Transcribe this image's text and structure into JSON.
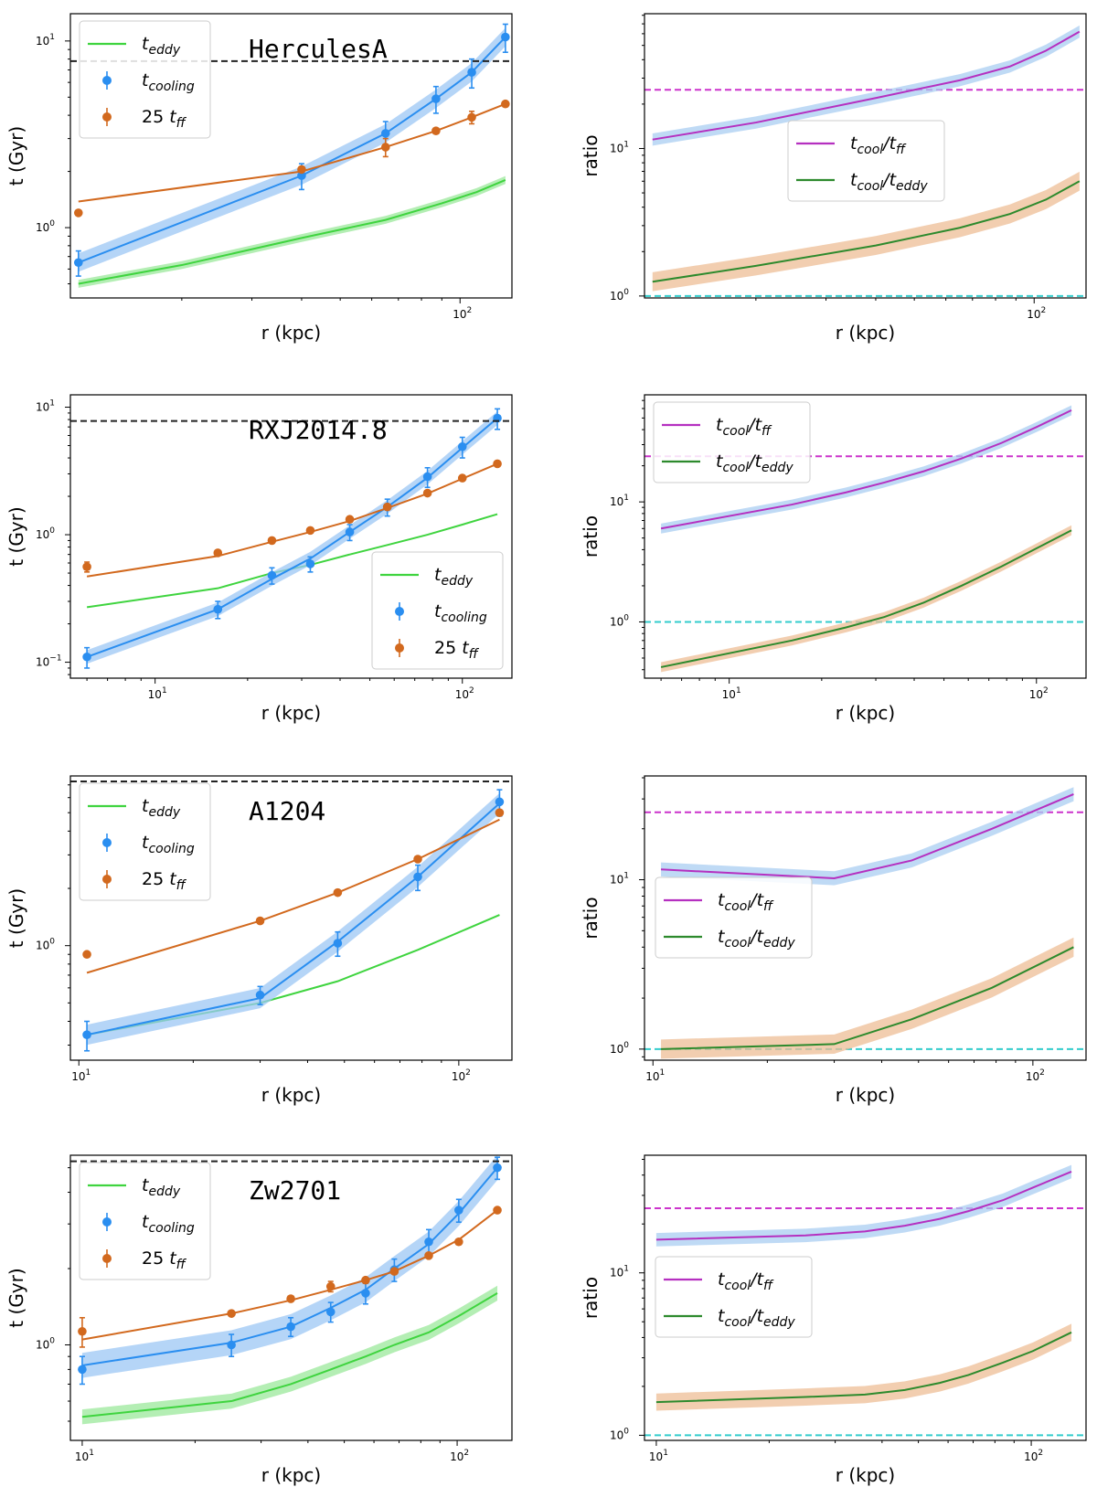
{
  "chart_data": [
    {
      "type": "line",
      "panel": "time",
      "title": "HerculesA",
      "xlabel": "r (kpc)",
      "ylabel": "t (Gyr)",
      "xlim": [
        10.5,
        135
      ],
      "ylim": [
        0.42,
        14
      ],
      "yticks": [
        {
          "v": 1,
          "exp": "0"
        },
        {
          "v": 10,
          "exp": "1"
        }
      ],
      "xticks": [
        {
          "v": 100,
          "exp": "2"
        }
      ],
      "ref_line": 7.8,
      "legend": [
        "t_eddy",
        "t_cooling",
        "25 t_ff"
      ],
      "legend_position": "upper-left",
      "series": [
        {
          "name": "t_eddy",
          "band": 0.05,
          "x": [
            11,
            20,
            40,
            65,
            90,
            110,
            130
          ],
          "y": [
            0.5,
            0.63,
            0.88,
            1.1,
            1.35,
            1.55,
            1.8
          ]
        },
        {
          "name": "t_cooling",
          "band": 0.12,
          "x": [
            11,
            40,
            65,
            87,
            107,
            130
          ],
          "y": [
            0.65,
            1.9,
            3.2,
            4.9,
            6.8,
            10.5
          ],
          "points": {
            "x": [
              11,
              40,
              65,
              87,
              107,
              130
            ],
            "y": [
              0.65,
              1.9,
              3.2,
              4.9,
              6.8,
              10.5
            ],
            "err": [
              0.1,
              0.3,
              0.5,
              0.8,
              1.2,
              1.8
            ]
          }
        },
        {
          "name": "25 t_ff",
          "band": 0,
          "x": [
            11,
            40,
            65,
            87,
            107,
            130
          ],
          "y": [
            1.38,
            2.0,
            2.7,
            3.3,
            3.9,
            4.6
          ],
          "points": {
            "x": [
              11,
              40,
              65,
              87,
              107,
              130
            ],
            "y": [
              1.2,
              2.05,
              2.7,
              3.3,
              3.9,
              4.6
            ],
            "err": [
              0,
              0,
              0.3,
              0,
              0.3,
              0
            ]
          }
        }
      ]
    },
    {
      "type": "line",
      "panel": "ratio",
      "title": "",
      "xlabel": "r (kpc)",
      "ylabel": "ratio",
      "xlim": [
        10.5,
        135
      ],
      "ylim": [
        0.97,
        82
      ],
      "yticks": [
        {
          "v": 1,
          "exp": "0"
        },
        {
          "v": 10,
          "exp": "1"
        }
      ],
      "xticks": [
        {
          "v": 100,
          "exp": "2"
        }
      ],
      "hlines": [
        {
          "v": 25,
          "color": "#cc33cc"
        },
        {
          "v": 1,
          "color": "#33cccc"
        }
      ],
      "legend": [
        "t_cool/t_ff",
        "t_cool/t_eddy"
      ],
      "legend_position": "center",
      "series": [
        {
          "name": "t_cool/t_ff",
          "band": 0.1,
          "x": [
            11,
            20,
            40,
            65,
            87,
            107,
            130
          ],
          "y": [
            11.5,
            15,
            22,
            29,
            36,
            46,
            62
          ]
        },
        {
          "name": "t_cool/t_eddy",
          "band": 0.16,
          "x": [
            11,
            20,
            40,
            65,
            87,
            107,
            130
          ],
          "y": [
            1.25,
            1.6,
            2.2,
            2.9,
            3.6,
            4.5,
            6.0
          ]
        }
      ]
    },
    {
      "type": "line",
      "panel": "time",
      "title": "RXJ2014.8",
      "xlabel": "r (kpc)",
      "ylabel": "t (Gyr)",
      "xlim": [
        5.3,
        145
      ],
      "ylim": [
        0.075,
        12.5
      ],
      "yticks": [
        {
          "v": 0.1,
          "exp": "−1"
        },
        {
          "v": 1,
          "exp": "0"
        },
        {
          "v": 10,
          "exp": "1"
        }
      ],
      "xticks": [
        {
          "v": 10,
          "exp": "1"
        },
        {
          "v": 100,
          "exp": "2"
        }
      ],
      "ref_line": 7.8,
      "legend": [
        "t_eddy",
        "t_cooling",
        "25 t_ff"
      ],
      "legend_position": "lower-right",
      "series": [
        {
          "name": "t_eddy",
          "band": 0,
          "x": [
            6,
            16,
            24,
            32,
            43,
            57,
            77,
            100,
            130
          ],
          "y": [
            0.27,
            0.38,
            0.5,
            0.58,
            0.7,
            0.83,
            1.0,
            1.2,
            1.45
          ]
        },
        {
          "name": "t_cooling",
          "band": 0.13,
          "x": [
            6,
            16,
            24,
            32,
            43,
            57,
            77,
            100,
            130
          ],
          "y": [
            0.11,
            0.26,
            0.45,
            0.65,
            1.05,
            1.65,
            2.8,
            4.8,
            8.2
          ],
          "points": {
            "x": [
              6,
              16,
              24,
              32,
              43,
              57,
              77,
              100,
              130
            ],
            "y": [
              0.11,
              0.26,
              0.48,
              0.59,
              1.05,
              1.65,
              2.85,
              4.9,
              8.2
            ],
            "err": [
              0.02,
              0.04,
              0.07,
              0.08,
              0.15,
              0.25,
              0.5,
              0.9,
              1.5
            ]
          }
        },
        {
          "name": "25 t_ff",
          "band": 0,
          "x": [
            6,
            16,
            24,
            32,
            43,
            57,
            77,
            100,
            130
          ],
          "y": [
            0.47,
            0.68,
            0.88,
            1.05,
            1.28,
            1.62,
            2.1,
            2.75,
            3.6
          ],
          "points": {
            "x": [
              6,
              16,
              24,
              32,
              43,
              57,
              77,
              100,
              130
            ],
            "y": [
              0.56,
              0.72,
              0.9,
              1.08,
              1.32,
              1.65,
              2.12,
              2.78,
              3.6
            ],
            "err": [
              0.05,
              0,
              0,
              0,
              0,
              0,
              0,
              0,
              0
            ]
          }
        }
      ]
    },
    {
      "type": "line",
      "panel": "ratio",
      "title": "",
      "xlabel": "r (kpc)",
      "ylabel": "ratio",
      "xlim": [
        5.3,
        145
      ],
      "ylim": [
        0.34,
        78
      ],
      "yticks": [
        {
          "v": 1,
          "exp": "0"
        },
        {
          "v": 10,
          "exp": "1"
        }
      ],
      "xticks": [
        {
          "v": 10,
          "exp": "1"
        },
        {
          "v": 100,
          "exp": "2"
        }
      ],
      "hlines": [
        {
          "v": 24,
          "color": "#cc33cc"
        },
        {
          "v": 1,
          "color": "#33cccc"
        }
      ],
      "legend": [
        "t_cool/t_ff",
        "t_cool/t_eddy"
      ],
      "legend_position": "upper-left",
      "series": [
        {
          "name": "t_cool/t_ff",
          "band": 0.1,
          "x": [
            6,
            16,
            24,
            32,
            43,
            57,
            77,
            100,
            130
          ],
          "y": [
            6.0,
            9.5,
            12,
            14.5,
            18,
            23,
            31,
            42,
            58
          ]
        },
        {
          "name": "t_cool/t_eddy",
          "band": 0.1,
          "x": [
            6,
            16,
            24,
            32,
            43,
            57,
            77,
            100,
            130
          ],
          "y": [
            0.42,
            0.7,
            0.9,
            1.1,
            1.45,
            2.0,
            2.9,
            4.1,
            5.8
          ]
        }
      ]
    },
    {
      "type": "line",
      "panel": "time",
      "title": "A1204",
      "xlabel": "r (kpc)",
      "ylabel": "t (Gyr)",
      "xlim": [
        9.5,
        138
      ],
      "ylim": [
        0.25,
        7.8
      ],
      "yticks": [
        {
          "v": 1,
          "exp": "0"
        }
      ],
      "xticks": [
        {
          "v": 10,
          "exp": "1"
        },
        {
          "v": 100,
          "exp": "2"
        }
      ],
      "ref_line": 7.3,
      "legend": [
        "t_eddy",
        "t_cooling",
        "25 t_ff"
      ],
      "legend_position": "upper-left",
      "series": [
        {
          "name": "t_eddy",
          "band": 0,
          "x": [
            10.5,
            30,
            48,
            78,
            128
          ],
          "y": [
            0.34,
            0.5,
            0.65,
            0.95,
            1.45
          ]
        },
        {
          "name": "t_cooling",
          "band": 0.13,
          "x": [
            10.5,
            30,
            48,
            78,
            128
          ],
          "y": [
            0.34,
            0.53,
            1.05,
            2.3,
            5.6
          ],
          "points": {
            "x": [
              10.5,
              30,
              48,
              78,
              128
            ],
            "y": [
              0.34,
              0.55,
              1.03,
              2.3,
              5.7
            ],
            "err": [
              0.06,
              0.06,
              0.15,
              0.35,
              0.9
            ]
          }
        },
        {
          "name": "25 t_ff",
          "band": 0,
          "x": [
            10.5,
            30,
            48,
            78,
            128
          ],
          "y": [
            0.72,
            1.35,
            1.9,
            2.85,
            4.6
          ],
          "points": {
            "x": [
              10.5,
              30,
              48,
              78,
              128
            ],
            "y": [
              0.9,
              1.35,
              1.9,
              2.85,
              5.0
            ],
            "err": [
              0,
              0,
              0,
              0,
              0
            ]
          }
        }
      ]
    },
    {
      "type": "line",
      "panel": "ratio",
      "title": "",
      "xlabel": "r (kpc)",
      "ylabel": "ratio",
      "xlim": [
        9.5,
        138
      ],
      "ylim": [
        0.86,
        41
      ],
      "yticks": [
        {
          "v": 1,
          "exp": "0"
        },
        {
          "v": 10,
          "exp": "1"
        }
      ],
      "xticks": [
        {
          "v": 10,
          "exp": "1"
        },
        {
          "v": 100,
          "exp": "2"
        }
      ],
      "hlines": [
        {
          "v": 25,
          "color": "#cc33cc"
        },
        {
          "v": 1,
          "color": "#33cccc"
        }
      ],
      "legend": [
        "t_cool/t_ff",
        "t_cool/t_eddy"
      ],
      "legend_position": "center-left",
      "series": [
        {
          "name": "t_cool/t_ff",
          "band": 0.1,
          "x": [
            10.5,
            30,
            48,
            78,
            128
          ],
          "y": [
            11.5,
            10.2,
            13,
            20,
            32
          ]
        },
        {
          "name": "t_cool/t_eddy",
          "band": 0.14,
          "x": [
            10.5,
            30,
            48,
            78,
            128
          ],
          "y": [
            1.0,
            1.07,
            1.5,
            2.3,
            4.0
          ]
        }
      ]
    },
    {
      "type": "line",
      "panel": "time",
      "title": "Zw2701",
      "xlabel": "r (kpc)",
      "ylabel": "t (Gyr)",
      "xlim": [
        9.3,
        140
      ],
      "ylim": [
        0.42,
        5.6
      ],
      "yticks": [
        {
          "v": 1,
          "exp": "0"
        }
      ],
      "xticks": [
        {
          "v": 10,
          "exp": "1"
        },
        {
          "v": 100,
          "exp": "2"
        }
      ],
      "ref_line": 5.3,
      "legend": [
        "t_eddy",
        "t_cooling",
        "25 t_ff"
      ],
      "legend_position": "upper-left",
      "series": [
        {
          "name": "t_eddy",
          "band": 0.07,
          "x": [
            10,
            25,
            36,
            46,
            57,
            68,
            84,
            101,
            128
          ],
          "y": [
            0.52,
            0.6,
            0.7,
            0.8,
            0.9,
            1.0,
            1.12,
            1.3,
            1.6
          ]
        },
        {
          "name": "t_cooling",
          "band": 0.12,
          "x": [
            10,
            25,
            36,
            46,
            57,
            68,
            84,
            101,
            128
          ],
          "y": [
            0.83,
            1.02,
            1.18,
            1.4,
            1.65,
            2.0,
            2.5,
            3.3,
            5.0
          ],
          "points": {
            "x": [
              10,
              25,
              36,
              46,
              57,
              68,
              84,
              101,
              128
            ],
            "y": [
              0.8,
              1.0,
              1.18,
              1.35,
              1.6,
              1.98,
              2.55,
              3.4,
              5.0
            ],
            "err": [
              0.1,
              0.1,
              0.1,
              0.12,
              0.15,
              0.2,
              0.3,
              0.35,
              0.5
            ]
          }
        },
        {
          "name": "25 t_ff",
          "band": 0,
          "x": [
            10,
            25,
            36,
            46,
            57,
            68,
            84,
            101,
            128
          ],
          "y": [
            1.05,
            1.33,
            1.5,
            1.65,
            1.8,
            1.95,
            2.25,
            2.6,
            3.4
          ],
          "points": {
            "x": [
              10,
              25,
              36,
              46,
              57,
              68,
              84,
              101,
              128
            ],
            "y": [
              1.13,
              1.33,
              1.52,
              1.7,
              1.8,
              1.95,
              2.25,
              2.55,
              3.4
            ],
            "err": [
              0.15,
              0,
              0,
              0.08,
              0,
              0,
              0,
              0,
              0
            ]
          }
        }
      ]
    },
    {
      "type": "line",
      "panel": "ratio",
      "title": "",
      "xlabel": "r (kpc)",
      "ylabel": "ratio",
      "xlim": [
        9.3,
        140
      ],
      "ylim": [
        0.93,
        53
      ],
      "yticks": [
        {
          "v": 1,
          "exp": "0"
        },
        {
          "v": 10,
          "exp": "1"
        }
      ],
      "xticks": [
        {
          "v": 10,
          "exp": "1"
        },
        {
          "v": 100,
          "exp": "2"
        }
      ],
      "hlines": [
        {
          "v": 25,
          "color": "#cc33cc"
        },
        {
          "v": 1,
          "color": "#33cccc"
        }
      ],
      "legend": [
        "t_cool/t_ff",
        "t_cool/t_eddy"
      ],
      "legend_position": "center-left",
      "series": [
        {
          "name": "t_cool/t_ff",
          "band": 0.1,
          "x": [
            10,
            25,
            36,
            46,
            57,
            68,
            84,
            101,
            128
          ],
          "y": [
            16,
            17,
            18,
            19.5,
            21.5,
            24,
            28,
            33.5,
            42
          ]
        },
        {
          "name": "t_cool/t_eddy",
          "band": 0.13,
          "x": [
            10,
            25,
            36,
            46,
            57,
            68,
            84,
            101,
            128
          ],
          "y": [
            1.6,
            1.72,
            1.78,
            1.9,
            2.1,
            2.35,
            2.8,
            3.3,
            4.3
          ]
        }
      ]
    }
  ]
}
